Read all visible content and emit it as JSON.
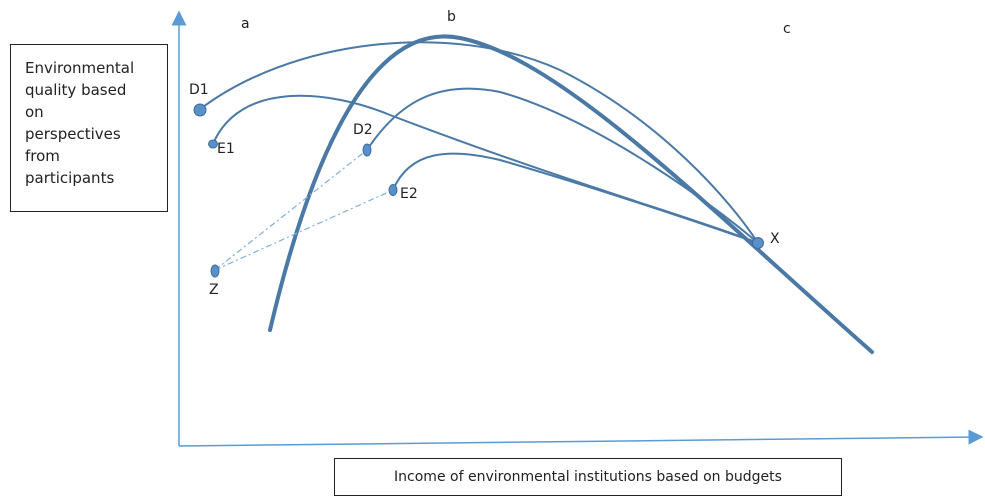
{
  "y_axis_label": "Environmental\nquality based\non\nperspectives\nfrom\nparticipants",
  "x_axis_label": "Income of environmental institutions based on budgets",
  "region_labels": {
    "a": "a",
    "b": "b",
    "c": "c"
  },
  "points": {
    "D1": "D1",
    "E1": "E1",
    "D2": "D2",
    "E2": "E2",
    "Z": "Z",
    "X": "X"
  },
  "colors": {
    "curve": "#4a79a6",
    "axis": "#5b9bd5",
    "dashed": "#7fb0dc",
    "point_fill": "#5b8fc7"
  }
}
